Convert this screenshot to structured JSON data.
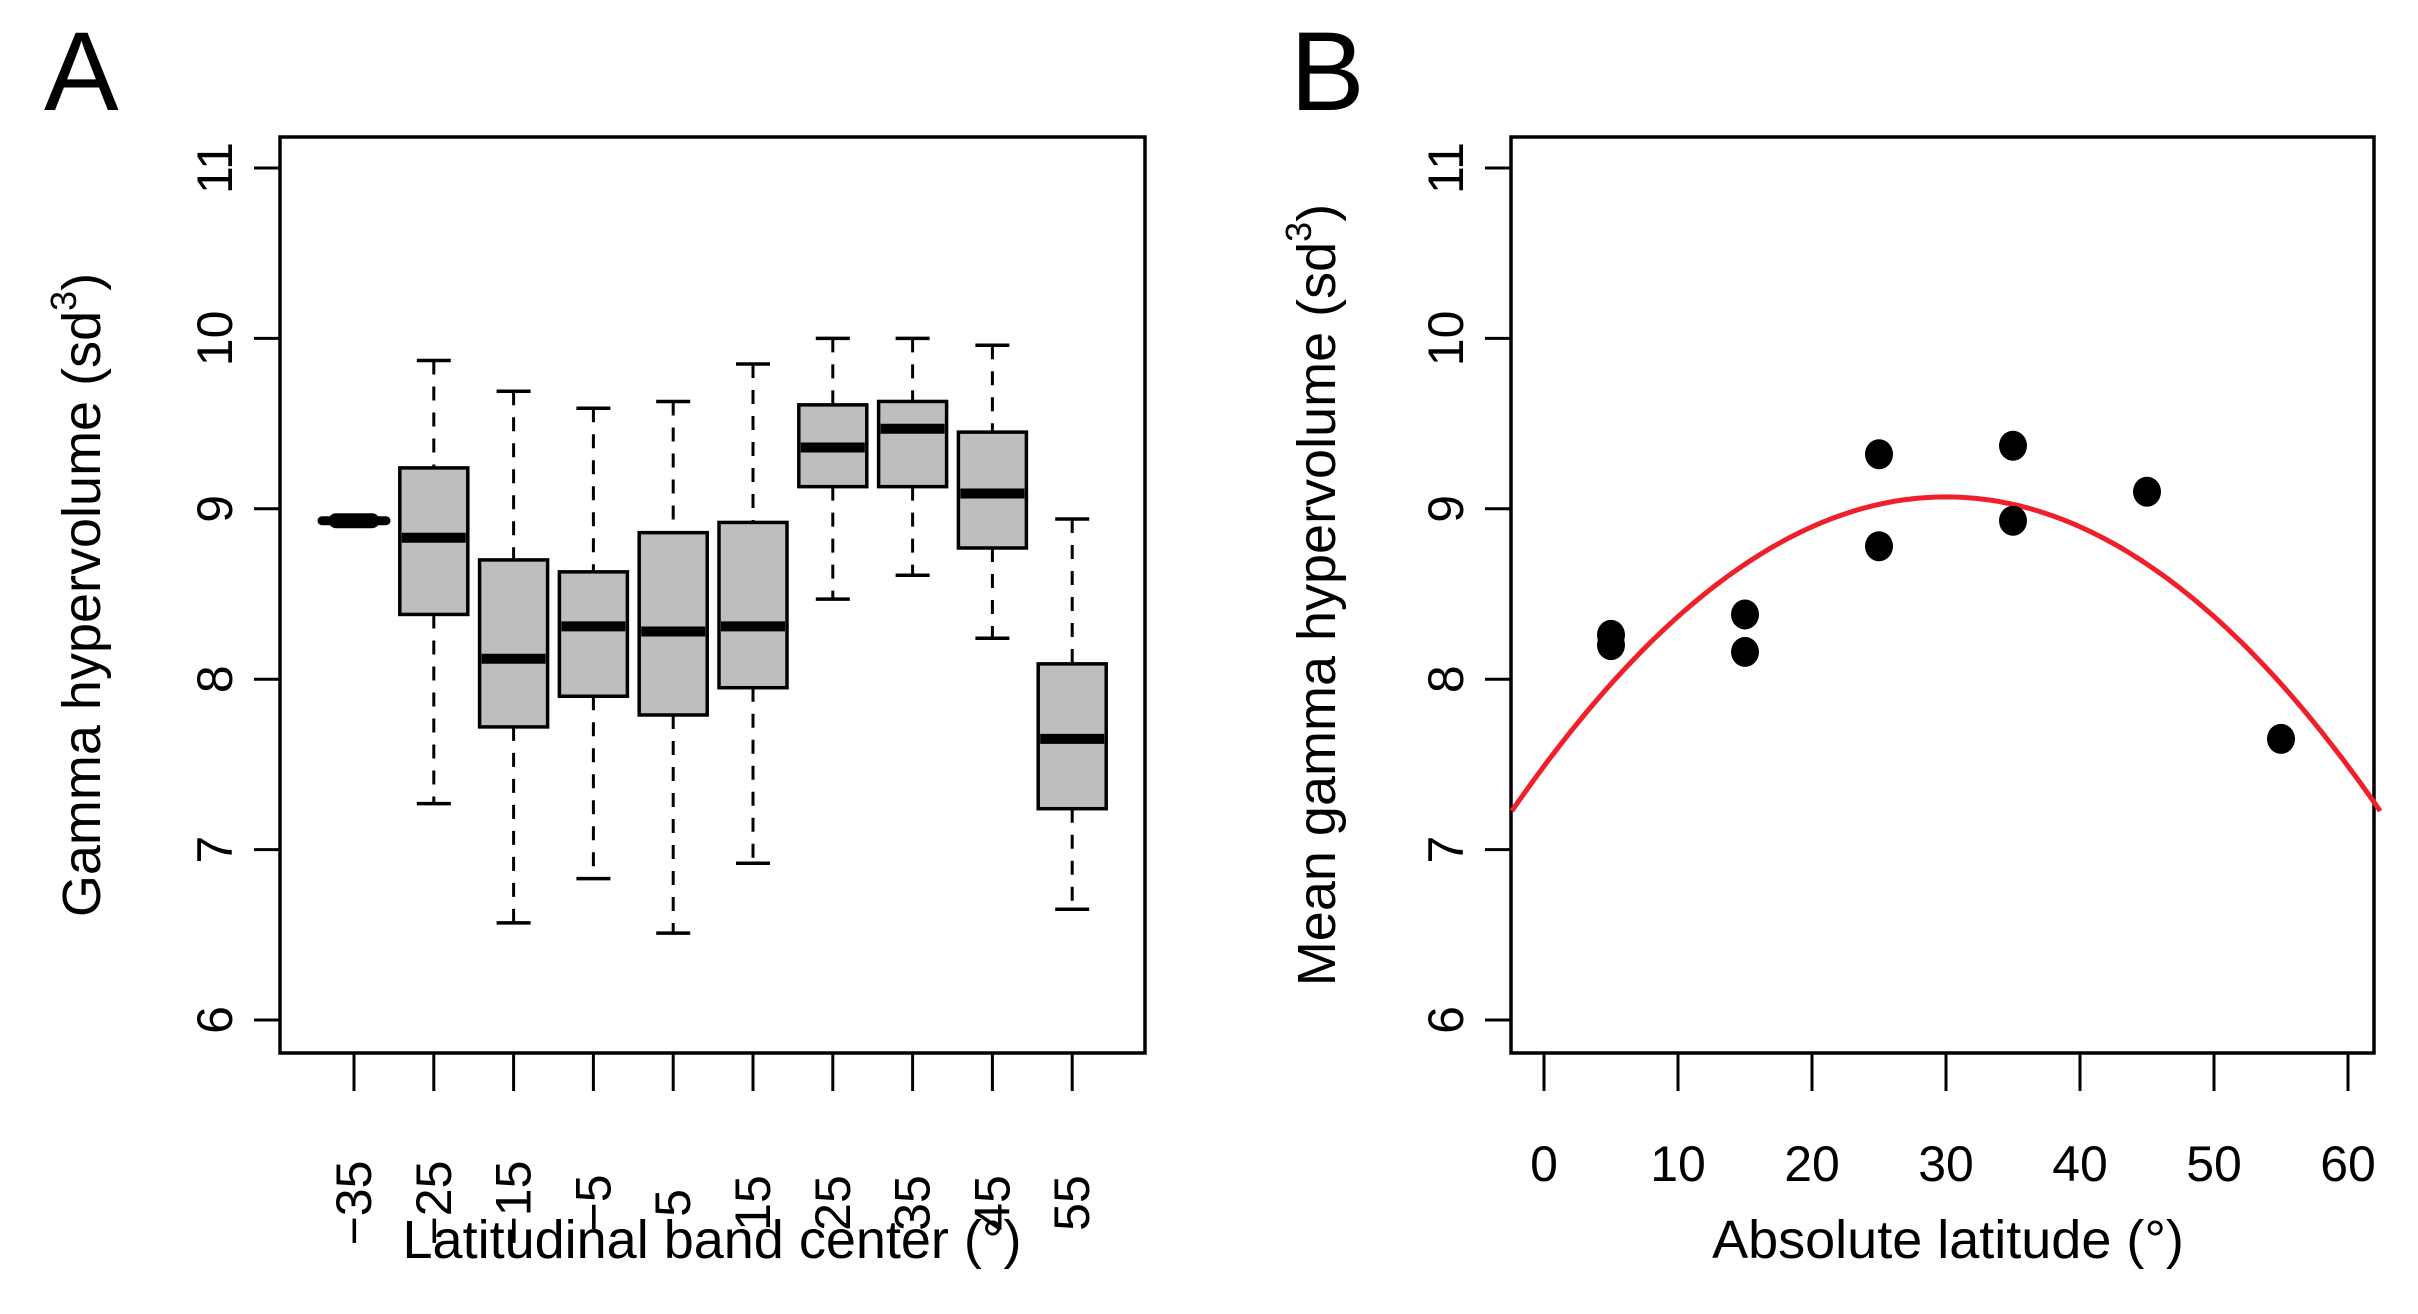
{
  "figure": {
    "panel_a_letter": "A",
    "panel_b_letter": "B"
  },
  "colors": {
    "box_fill": "#bebebe",
    "curve": "#f0202a",
    "points": "#000000"
  },
  "chart_data": [
    {
      "type": "boxplot",
      "panel": "A",
      "title": "",
      "xlabel": "Latitudinal band center (°)",
      "ylabel": "Gamma hypervolume (sd³)",
      "ylabel_parts": {
        "main": "Gamma hypervolume (sd",
        "sup": "3",
        "close": ")"
      },
      "ylim": [
        6,
        11
      ],
      "yticks": [
        6,
        7,
        8,
        9,
        10,
        11
      ],
      "ytick_labels": [
        "6",
        "7",
        "8",
        "9",
        "10",
        "11"
      ],
      "categories": [
        "−35",
        "−25",
        "−15",
        "−5",
        "5",
        "15",
        "25",
        "35",
        "45",
        "55"
      ],
      "boxes": [
        {
          "category": "−35",
          "whisker_low": 8.92,
          "q1": 8.92,
          "median": 8.93,
          "q3": 8.94,
          "whisker_high": 8.94
        },
        {
          "category": "−25",
          "whisker_low": 7.27,
          "q1": 8.38,
          "median": 8.83,
          "q3": 9.24,
          "whisker_high": 9.87
        },
        {
          "category": "−15",
          "whisker_low": 6.57,
          "q1": 7.72,
          "median": 8.12,
          "q3": 8.7,
          "whisker_high": 9.69
        },
        {
          "category": "−5",
          "whisker_low": 6.83,
          "q1": 7.9,
          "median": 8.31,
          "q3": 8.63,
          "whisker_high": 9.59
        },
        {
          "category": "5",
          "whisker_low": 6.51,
          "q1": 7.79,
          "median": 8.28,
          "q3": 8.86,
          "whisker_high": 9.63
        },
        {
          "category": "15",
          "whisker_low": 6.92,
          "q1": 7.95,
          "median": 8.31,
          "q3": 8.92,
          "whisker_high": 9.85
        },
        {
          "category": "25",
          "whisker_low": 8.47,
          "q1": 9.13,
          "median": 9.36,
          "q3": 9.61,
          "whisker_high": 10.0
        },
        {
          "category": "35",
          "whisker_low": 8.61,
          "q1": 9.13,
          "median": 9.47,
          "q3": 9.63,
          "whisker_high": 10.0
        },
        {
          "category": "45",
          "whisker_low": 8.24,
          "q1": 8.77,
          "median": 9.09,
          "q3": 9.45,
          "whisker_high": 9.96
        },
        {
          "category": "55",
          "whisker_low": 6.65,
          "q1": 7.24,
          "median": 7.65,
          "q3": 8.09,
          "whisker_high": 8.94
        }
      ],
      "grid": false
    },
    {
      "type": "scatter",
      "panel": "B",
      "title": "",
      "xlabel": "Absolute latitude (°)",
      "ylabel": "Mean gamma hypervolume (sd³)",
      "ylabel_parts": {
        "main": "Mean gamma hypervolume (sd",
        "sup": "3",
        "close": ")"
      },
      "xlim": [
        -2.4,
        62.4
      ],
      "ylim": [
        6,
        11
      ],
      "xticks": [
        0,
        10,
        20,
        30,
        40,
        50,
        60
      ],
      "xtick_labels": [
        "0",
        "10",
        "20",
        "30",
        "40",
        "50",
        "60"
      ],
      "yticks": [
        6,
        7,
        8,
        9,
        10,
        11
      ],
      "ytick_labels": [
        "6",
        "7",
        "8",
        "9",
        "10",
        "11"
      ],
      "points": [
        {
          "x": 5,
          "y": 8.26
        },
        {
          "x": 5,
          "y": 8.2
        },
        {
          "x": 15,
          "y": 8.38
        },
        {
          "x": 15,
          "y": 8.16
        },
        {
          "x": 25,
          "y": 9.32
        },
        {
          "x": 25,
          "y": 8.78
        },
        {
          "x": 35,
          "y": 9.37
        },
        {
          "x": 35,
          "y": 8.93
        },
        {
          "x": 45,
          "y": 9.1
        },
        {
          "x": 55,
          "y": 7.65
        }
      ],
      "fit": {
        "type": "quadratic",
        "vertex_x": 30,
        "vertex_y": 9.07,
        "curvature": -0.001756,
        "color": "#f0202a"
      },
      "grid": false
    }
  ]
}
